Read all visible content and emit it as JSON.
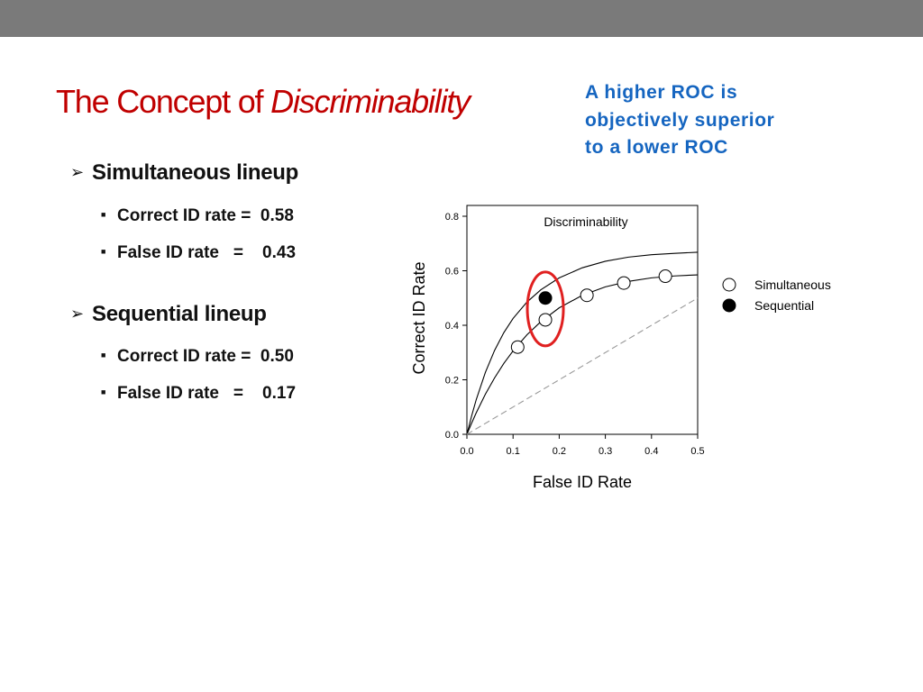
{
  "slide": {
    "title_plain": "The Concept of ",
    "title_italic": "Discriminability",
    "callout": "A higher ROC is\nobjectively superior\nto a lower ROC",
    "sections": [
      {
        "heading": "Simultaneous lineup",
        "items": [
          {
            "text": "Correct ID rate =  0.58"
          },
          {
            "text": "False ID rate   =    0.43"
          }
        ]
      },
      {
        "heading": "Sequential lineup",
        "items": [
          {
            "text": "Correct ID rate =  0.50"
          },
          {
            "text": "False ID rate   =    0.17"
          }
        ]
      }
    ],
    "bullet_icon": "arrow-bullet-icon",
    "sub_bullet_icon": "square-bullet-icon",
    "accent_colors": {
      "title": "#c00000",
      "callout": "#1565c0",
      "highlight_ring": "#e02020"
    }
  },
  "chart_data": {
    "type": "scatter",
    "title": "Discriminability",
    "xlabel": "False ID Rate",
    "ylabel": "Correct ID Rate",
    "xlim": [
      0.0,
      0.5
    ],
    "ylim": [
      0.0,
      0.8
    ],
    "x_ticks": [
      "0.0",
      "0.1",
      "0.2",
      "0.3",
      "0.4",
      "0.5"
    ],
    "y_ticks": [
      "0.0",
      "0.2",
      "0.4",
      "0.6",
      "0.8"
    ],
    "grid": false,
    "legend_position": "right",
    "series": [
      {
        "name": "Simultaneous",
        "marker": "open-circle",
        "x": [
          0.11,
          0.17,
          0.26,
          0.34,
          0.43
        ],
        "y": [
          0.32,
          0.42,
          0.51,
          0.555,
          0.58
        ]
      },
      {
        "name": "Sequential",
        "marker": "filled-circle",
        "x": [
          0.17
        ],
        "y": [
          0.5
        ]
      }
    ],
    "curves": [
      {
        "label": "upper-roc",
        "x": [
          0,
          0.01,
          0.02,
          0.04,
          0.06,
          0.08,
          0.1,
          0.13,
          0.16,
          0.2,
          0.25,
          0.3,
          0.35,
          0.4,
          0.45,
          0.5
        ],
        "y": [
          0,
          0.066,
          0.126,
          0.227,
          0.308,
          0.373,
          0.425,
          0.485,
          0.53,
          0.574,
          0.611,
          0.635,
          0.65,
          0.659,
          0.664,
          0.668
        ]
      },
      {
        "label": "lower-roc",
        "x": [
          0,
          0.01,
          0.02,
          0.04,
          0.06,
          0.08,
          0.1,
          0.13,
          0.16,
          0.2,
          0.25,
          0.3,
          0.35,
          0.4,
          0.45,
          0.5
        ],
        "y": [
          0,
          0.04,
          0.078,
          0.147,
          0.207,
          0.26,
          0.306,
          0.365,
          0.413,
          0.464,
          0.51,
          0.541,
          0.561,
          0.574,
          0.581,
          0.585
        ]
      },
      {
        "label": "chance-line",
        "style": "dashed",
        "x": [
          0,
          0.5
        ],
        "y": [
          0,
          0.5
        ]
      }
    ],
    "highlight": {
      "shape": "ellipse",
      "x": 0.17,
      "y": 0.46
    }
  }
}
